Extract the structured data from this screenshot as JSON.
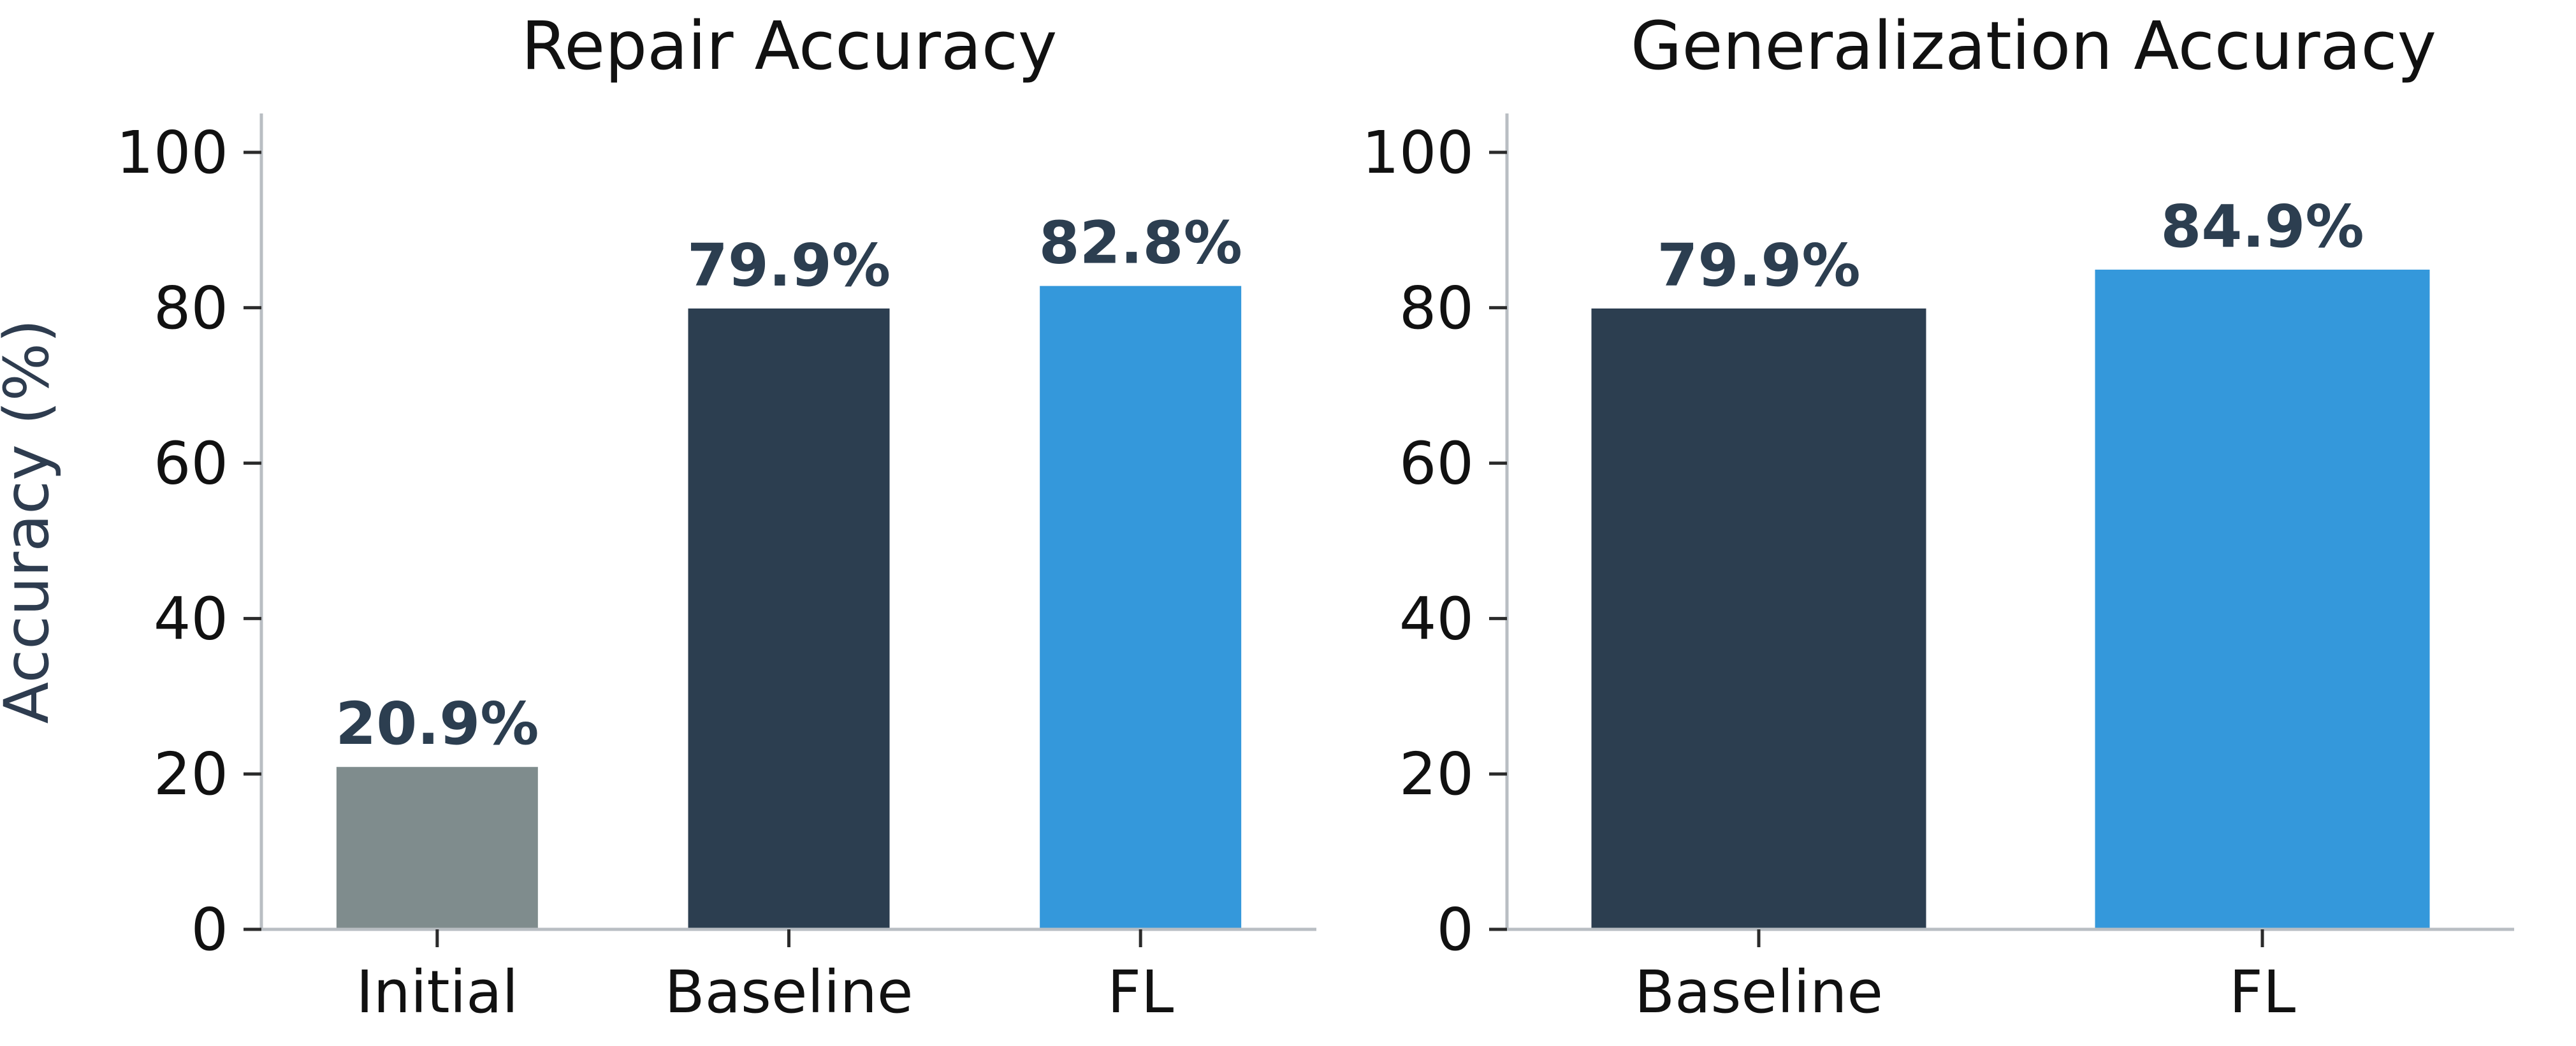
{
  "chart_data": [
    {
      "type": "bar",
      "title": "Repair Accuracy",
      "xlabel": "",
      "ylabel": "Accuracy (%)",
      "ylim": [
        0,
        105
      ],
      "yticks": [
        "0",
        "20",
        "40",
        "60",
        "80",
        "100"
      ],
      "grid": false,
      "categories": [
        "Initial",
        "Baseline",
        "FL"
      ],
      "values": [
        20.9,
        79.9,
        82.8
      ],
      "data_labels": [
        "20.9%",
        "79.9%",
        "82.8%"
      ],
      "colors": [
        "#7f8c8d",
        "#2c3e50",
        "#3498db"
      ]
    },
    {
      "type": "bar",
      "title": "Generalization Accuracy",
      "xlabel": "",
      "ylabel": "",
      "ylim": [
        0,
        105
      ],
      "yticks": [
        "0",
        "20",
        "40",
        "60",
        "80",
        "100"
      ],
      "grid": false,
      "categories": [
        "Baseline",
        "FL"
      ],
      "values": [
        79.9,
        84.9
      ],
      "data_labels": [
        "79.9%",
        "84.9%"
      ],
      "colors": [
        "#2c3e50",
        "#3498db"
      ]
    }
  ]
}
